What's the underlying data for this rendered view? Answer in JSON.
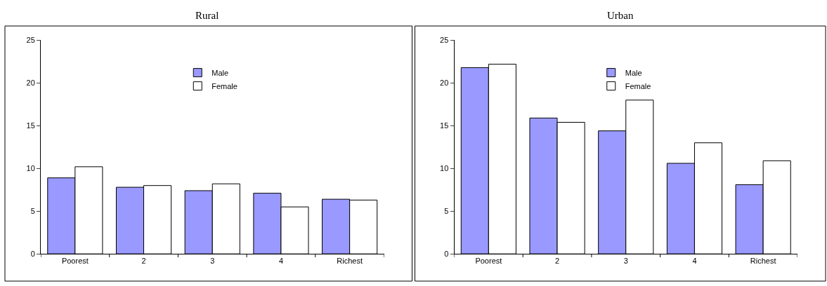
{
  "chart_data": [
    {
      "type": "bar",
      "title": "Rural",
      "categories": [
        "Poorest",
        "2",
        "3",
        "4",
        "Richest"
      ],
      "series": [
        {
          "name": "Male",
          "color": "#9999ff",
          "values": [
            8.9,
            7.8,
            7.4,
            7.1,
            6.4
          ]
        },
        {
          "name": "Female",
          "color": "#ffffff",
          "values": [
            10.2,
            8.0,
            8.2,
            5.5,
            6.3
          ]
        }
      ],
      "ylim": [
        0,
        25
      ],
      "yticks": [
        0,
        5,
        10,
        15,
        20,
        25
      ],
      "legend": "top"
    },
    {
      "type": "bar",
      "title": "Urban",
      "categories": [
        "Poorest",
        "2",
        "3",
        "4",
        "Richest"
      ],
      "series": [
        {
          "name": "Male",
          "color": "#9999ff",
          "values": [
            21.8,
            15.9,
            14.4,
            10.6,
            8.1
          ]
        },
        {
          "name": "Female",
          "color": "#ffffff",
          "values": [
            22.2,
            15.4,
            18.0,
            13.0,
            10.9
          ]
        }
      ],
      "ylim": [
        0,
        25
      ],
      "yticks": [
        0,
        5,
        10,
        15,
        20,
        25
      ],
      "legend": "top"
    }
  ]
}
